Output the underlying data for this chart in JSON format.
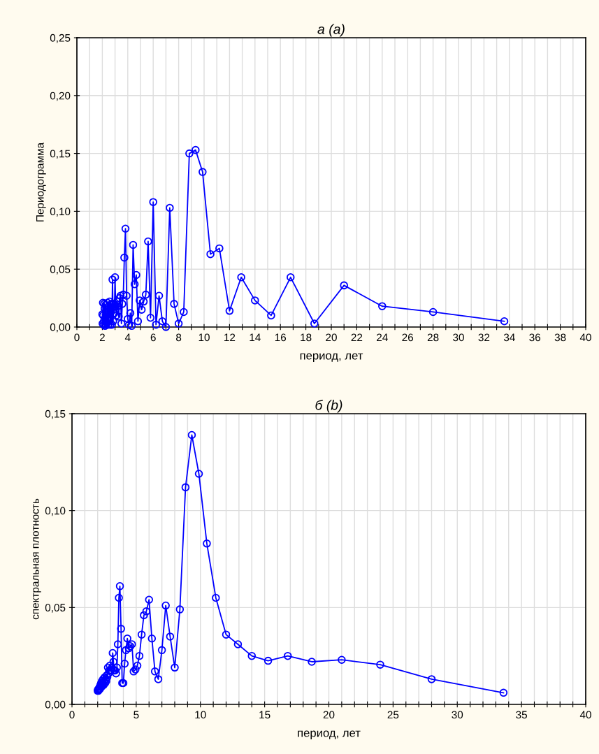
{
  "chart_data": [
    {
      "type": "line",
      "title": "а (a)",
      "xlabel": "период, лет",
      "ylabel": "Периодограмма",
      "grid": true,
      "marker": "circle",
      "line_style": "solid",
      "xlim": [
        0,
        40
      ],
      "ylim": [
        0,
        0.25
      ],
      "xticks": [
        0,
        {
          "value": 1,
          "label": null
        },
        2,
        {
          "value": 3,
          "label": null
        },
        4,
        {
          "value": 5,
          "label": null
        },
        6,
        {
          "value": 7,
          "label": null
        },
        8,
        {
          "value": 9,
          "label": null
        },
        10,
        {
          "value": 11,
          "label": null
        },
        12,
        {
          "value": 13,
          "label": null
        },
        14,
        {
          "value": 15,
          "label": null
        },
        16,
        {
          "value": 17,
          "label": null
        },
        18,
        {
          "value": 19,
          "label": null
        },
        20,
        {
          "value": 21,
          "label": null
        },
        22,
        {
          "value": 23,
          "label": null
        },
        24,
        {
          "value": 25,
          "label": null
        },
        26,
        {
          "value": 27,
          "label": null
        },
        28,
        {
          "value": 29,
          "label": null
        },
        30,
        {
          "value": 31,
          "label": null
        },
        32,
        {
          "value": 33,
          "label": null
        },
        34,
        {
          "value": 35,
          "label": null
        },
        36,
        {
          "value": 37,
          "label": null
        },
        38,
        {
          "value": 39,
          "label": null
        },
        40
      ],
      "yticks": [
        {
          "value": 0,
          "label": "0,00"
        },
        {
          "value": 0.05,
          "label": "0,05"
        },
        {
          "value": 0.1,
          "label": "0,10"
        },
        {
          "value": 0.15,
          "label": "0,15"
        },
        {
          "value": 0.2,
          "label": "0,20"
        },
        {
          "value": 0.25,
          "label": "0,25"
        }
      ],
      "x": [
        2.0,
        2.02,
        2.05,
        2.07,
        2.1,
        2.13,
        2.15,
        2.18,
        2.21,
        2.24,
        2.27,
        2.3,
        2.33,
        2.37,
        2.4,
        2.43,
        2.47,
        2.51,
        2.55,
        2.58,
        2.63,
        2.67,
        2.71,
        2.75,
        2.8,
        2.85,
        2.9,
        2.95,
        3.0,
        3.05,
        3.11,
        3.17,
        3.23,
        3.29,
        3.36,
        3.43,
        3.5,
        3.57,
        3.65,
        3.73,
        3.82,
        3.91,
        4.0,
        4.1,
        4.2,
        4.31,
        4.42,
        4.54,
        4.67,
        4.8,
        4.94,
        5.09,
        5.25,
        5.42,
        5.6,
        5.79,
        6.0,
        6.22,
        6.46,
        6.72,
        7.0,
        7.3,
        7.64,
        8.0,
        8.4,
        8.84,
        9.33,
        9.88,
        10.5,
        11.2,
        12.0,
        12.92,
        14.0,
        15.27,
        16.8,
        18.67,
        21.0,
        24.0,
        28.0,
        33.6
      ],
      "series": [
        {
          "color": "#0000ff",
          "values": [
            0.011,
            0.003,
            0.021,
            0.01,
            0.002,
            0.005,
            0.02,
            0.016,
            0.001,
            0.008,
            0.019,
            0.002,
            0.012,
            0.004,
            0.021,
            0.015,
            0.002,
            0.018,
            0.008,
            0.022,
            0.002,
            0.015,
            0.02,
            0.002,
            0.041,
            0.005,
            0.02,
            0.012,
            0.043,
            0.018,
            0.01,
            0.022,
            0.018,
            0.009,
            0.025,
            0.027,
            0.003,
            0.02,
            0.028,
            0.06,
            0.085,
            0.027,
            0.007,
            0.002,
            0.012,
            0.001,
            0.071,
            0.037,
            0.045,
            0.005,
            0.023,
            0.015,
            0.022,
            0.028,
            0.074,
            0.008,
            0.108,
            0.002,
            0.027,
            0.005,
            0.0,
            0.103,
            0.02,
            0.003,
            0.013,
            0.15,
            0.153,
            0.134,
            0.063,
            0.068,
            0.014,
            0.043,
            0.023,
            0.01,
            0.043,
            0.003,
            0.036,
            0.018,
            0.013,
            0.005
          ]
        }
      ]
    },
    {
      "type": "line",
      "title": "б (b)",
      "xlabel": "период, лет",
      "ylabel": "спектральная плотность",
      "grid": true,
      "marker": "circle",
      "line_style": "solid",
      "xlim": [
        0,
        40
      ],
      "ylim": [
        0,
        0.15
      ],
      "xticks": [
        0,
        {
          "value": 1,
          "label": null
        },
        {
          "value": 2,
          "label": null
        },
        {
          "value": 3,
          "label": null
        },
        {
          "value": 4,
          "label": null
        },
        5,
        {
          "value": 6,
          "label": null
        },
        {
          "value": 7,
          "label": null
        },
        {
          "value": 8,
          "label": null
        },
        {
          "value": 9,
          "label": null
        },
        10,
        {
          "value": 11,
          "label": null
        },
        {
          "value": 12,
          "label": null
        },
        {
          "value": 13,
          "label": null
        },
        {
          "value": 14,
          "label": null
        },
        15,
        {
          "value": 16,
          "label": null
        },
        {
          "value": 17,
          "label": null
        },
        {
          "value": 18,
          "label": null
        },
        {
          "value": 19,
          "label": null
        },
        20,
        {
          "value": 21,
          "label": null
        },
        {
          "value": 22,
          "label": null
        },
        {
          "value": 23,
          "label": null
        },
        {
          "value": 24,
          "label": null
        },
        25,
        {
          "value": 26,
          "label": null
        },
        {
          "value": 27,
          "label": null
        },
        {
          "value": 28,
          "label": null
        },
        {
          "value": 29,
          "label": null
        },
        30,
        {
          "value": 31,
          "label": null
        },
        {
          "value": 32,
          "label": null
        },
        {
          "value": 33,
          "label": null
        },
        {
          "value": 34,
          "label": null
        },
        35,
        {
          "value": 36,
          "label": null
        },
        {
          "value": 37,
          "label": null
        },
        {
          "value": 38,
          "label": null
        },
        {
          "value": 39,
          "label": null
        },
        40
      ],
      "yticks": [
        {
          "value": 0,
          "label": "0,00"
        },
        {
          "value": 0.05,
          "label": "0,05"
        },
        {
          "value": 0.1,
          "label": "0,10"
        },
        {
          "value": 0.15,
          "label": "0,15"
        }
      ],
      "x": [
        2.0,
        2.02,
        2.05,
        2.07,
        2.1,
        2.13,
        2.15,
        2.18,
        2.21,
        2.24,
        2.27,
        2.3,
        2.33,
        2.37,
        2.4,
        2.43,
        2.47,
        2.51,
        2.55,
        2.58,
        2.63,
        2.67,
        2.71,
        2.75,
        2.8,
        2.85,
        2.9,
        2.95,
        3.0,
        3.05,
        3.11,
        3.17,
        3.23,
        3.29,
        3.36,
        3.43,
        3.5,
        3.57,
        3.65,
        3.73,
        3.82,
        3.91,
        4.0,
        4.1,
        4.2,
        4.31,
        4.42,
        4.54,
        4.67,
        4.8,
        4.94,
        5.09,
        5.25,
        5.42,
        5.6,
        5.79,
        6.0,
        6.22,
        6.46,
        6.72,
        7.0,
        7.3,
        7.64,
        8.0,
        8.4,
        8.84,
        9.33,
        9.88,
        10.5,
        11.2,
        12.0,
        12.92,
        14.0,
        15.27,
        16.8,
        18.67,
        21.0,
        24.0,
        28.0,
        33.6
      ],
      "series": [
        {
          "color": "#0000ff",
          "values": [
            0.007,
            0.0075,
            0.007,
            0.008,
            0.0075,
            0.008,
            0.009,
            0.008,
            0.01,
            0.009,
            0.011,
            0.009,
            0.012,
            0.01,
            0.011,
            0.013,
            0.01,
            0.012,
            0.014,
            0.011,
            0.013,
            0.012,
            0.015,
            0.014,
            0.019,
            0.016,
            0.0175,
            0.02,
            0.0175,
            0.0175,
            0.019,
            0.0265,
            0.022,
            0.0175,
            0.0175,
            0.016,
            0.019,
            0.031,
            0.055,
            0.061,
            0.039,
            0.011,
            0.011,
            0.021,
            0.028,
            0.034,
            0.029,
            0.03,
            0.031,
            0.017,
            0.018,
            0.02,
            0.025,
            0.036,
            0.046,
            0.048,
            0.054,
            0.034,
            0.017,
            0.013,
            0.028,
            0.051,
            0.035,
            0.019,
            0.049,
            0.112,
            0.139,
            0.119,
            0.083,
            0.055,
            0.036,
            0.031,
            0.025,
            0.0225,
            0.025,
            0.022,
            0.023,
            0.0205,
            0.013,
            0.006
          ]
        }
      ]
    }
  ]
}
